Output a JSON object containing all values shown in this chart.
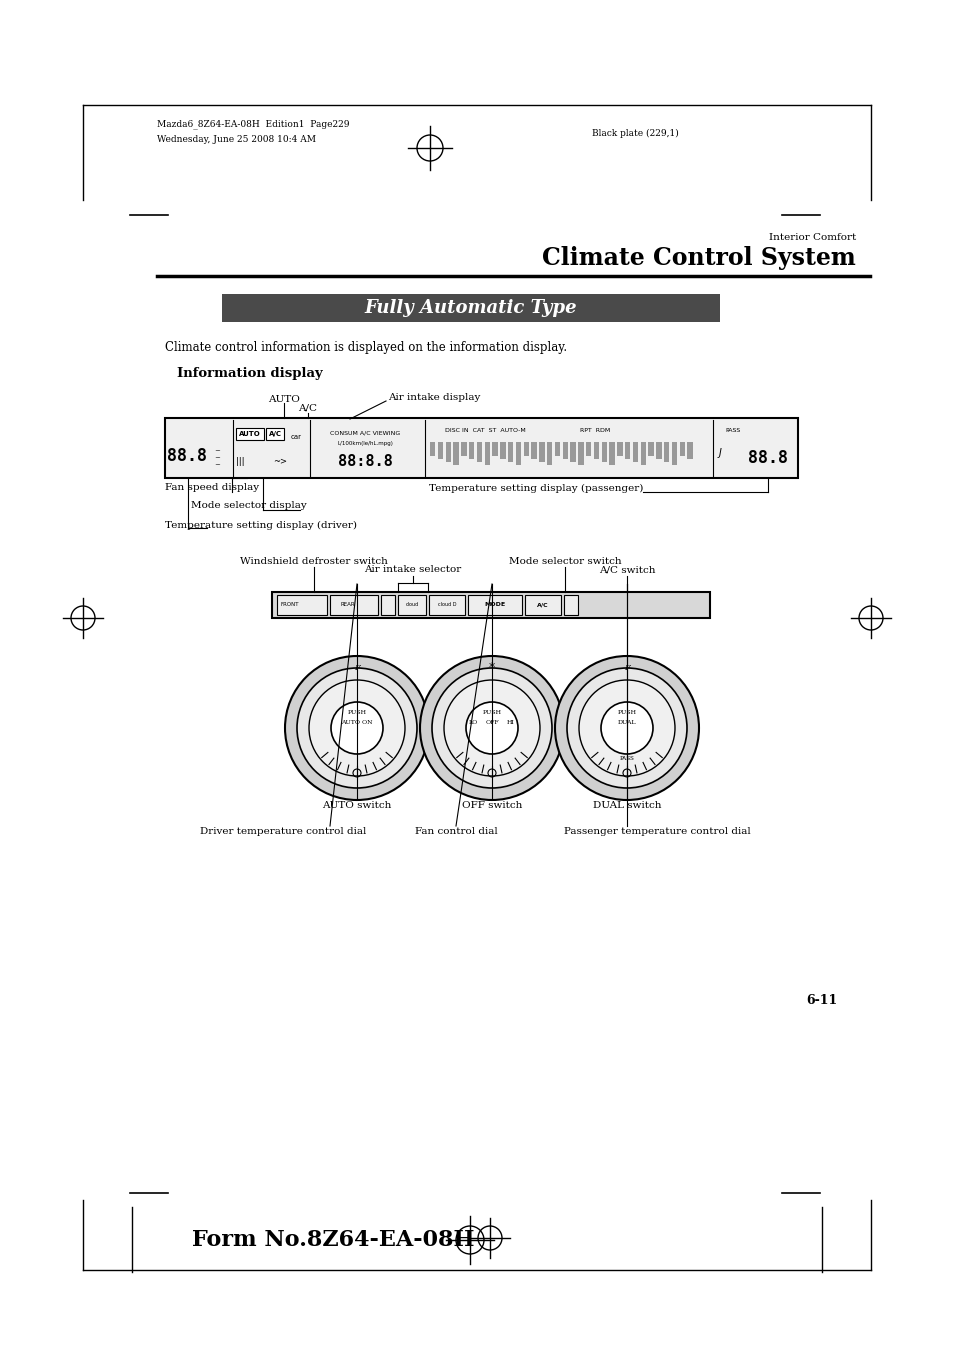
{
  "bg_color": "#ffffff",
  "page_width": 9.54,
  "page_height": 13.51,
  "header_text1": "Mazda6_8Z64-EA-08H  Edition1  Page229",
  "header_text2": "Wednesday, June 25 2008 10:4 AM",
  "header_right": "Black plate (229,1)",
  "section_label": "Interior Comfort",
  "title": "Climate Control System",
  "banner_text": "Fully Automatic Type",
  "banner_bg": "#4a4a4a",
  "banner_text_color": "#ffffff",
  "intro_text": "Climate control information is displayed on the information display.",
  "info_display_label": "Information display",
  "page_number": "6-11",
  "footer_text": "Form No.8Z64-EA-08H",
  "ann_auto": "AUTO",
  "ann_ac": "A/C",
  "ann_air_intake": "Air intake display",
  "ann_fan_speed": "Fan speed display",
  "ann_temp_pass": "Temperature setting display (passenger)",
  "ann_mode": "Mode selector display",
  "ann_temp_driver": "Temperature setting display (driver)",
  "sw_windshield": "Windshield defroster switch",
  "sw_mode": "Mode selector switch",
  "sw_air": "Air intake selector",
  "sw_ac": "A/C switch",
  "dial_auto": "AUTO switch",
  "dial_off": "OFF switch",
  "dial_dual": "DUAL switch",
  "ctrl_driver": "Driver temperature control dial",
  "ctrl_fan": "Fan control dial",
  "ctrl_pass": "Passenger temperature control dial"
}
